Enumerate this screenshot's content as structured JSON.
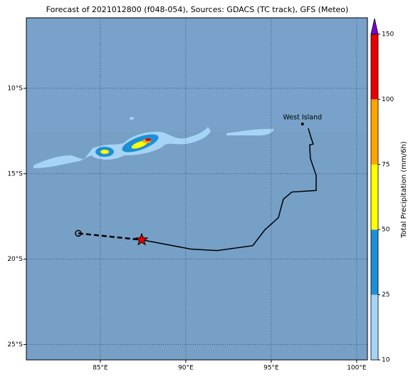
{
  "title": "Forecast of 2021012800 (f048-054), Sources: GDACS (TC track), GFS (Meteo)",
  "map": {
    "xlim": [
      80.67,
      100.63
    ],
    "ylim": [
      -25.9,
      -5.87
    ],
    "xticks": [
      {
        "value": 85,
        "label": "85°E"
      },
      {
        "value": 90,
        "label": "90°E"
      },
      {
        "value": 95,
        "label": "95°E"
      },
      {
        "value": 100,
        "label": "100°E"
      }
    ],
    "yticks": [
      {
        "value": -10,
        "label": "10°S"
      },
      {
        "value": -15,
        "label": "15°S"
      },
      {
        "value": -20,
        "label": "20°S"
      },
      {
        "value": -25,
        "label": "25°S"
      }
    ],
    "track": {
      "dashed": [
        [
          83.71,
          -18.49
        ],
        [
          87.42,
          -18.87
        ]
      ],
      "solid": [
        [
          87.42,
          -18.87
        ],
        [
          90.29,
          -19.41
        ],
        [
          91.83,
          -19.5
        ],
        [
          93.92,
          -19.21
        ],
        [
          94.63,
          -18.28
        ],
        [
          95.42,
          -17.57
        ],
        [
          95.71,
          -16.49
        ],
        [
          96.21,
          -16.07
        ],
        [
          97.63,
          -15.98
        ],
        [
          97.63,
          -15.1
        ],
        [
          97.29,
          -14.1
        ],
        [
          97.25,
          -13.31
        ],
        [
          97.46,
          -13.26
        ],
        [
          97.33,
          -12.89
        ],
        [
          97.17,
          -12.34
        ]
      ]
    },
    "places": [
      {
        "label": "West Island",
        "lon": 96.83,
        "lat": -12.09
      }
    ]
  },
  "colorbar": {
    "label": "Total Precipitation (mm/6h)",
    "ticks": [
      10,
      25,
      50,
      75,
      100,
      150
    ],
    "colors": [
      "#a6d4f6",
      "#1e8fd6",
      "#ffff00",
      "#ffa500",
      "#e60000"
    ],
    "extend_color": "#7b00d8"
  }
}
